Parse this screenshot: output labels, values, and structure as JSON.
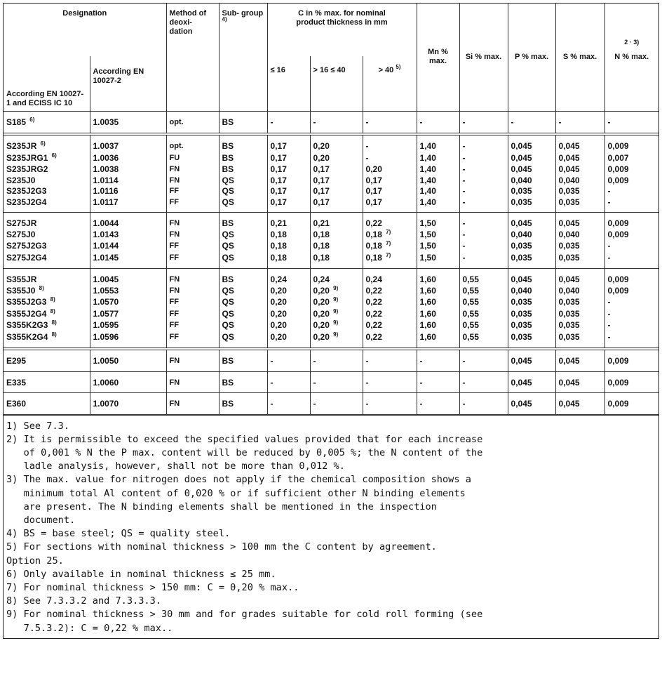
{
  "header": {
    "designation": "Designation",
    "en1": "According EN 10027-1 and ECISS IC 10",
    "en2": "According EN 10027-2",
    "method": "Method of deoxi- dation",
    "subgroup": "Sub- group",
    "subgroup_sup": "4)",
    "c_title": "C in % max. for nominal product thickness in mm",
    "c1": "≤ 16",
    "c2": "> 16 ≤ 40",
    "c3": "> 40",
    "c3_sup": "5)",
    "mn": "Mn % max.",
    "si": "Si % max.",
    "p": "P % max.",
    "s": "S % max.",
    "n": "N % max.",
    "n_sup": "2 · 3)"
  },
  "groups": [
    [
      [
        "S185|6)",
        "1.0035",
        "opt.",
        "BS",
        "-",
        "-",
        "-",
        "-",
        "-",
        "-",
        "-",
        "-"
      ]
    ],
    [
      [
        "S235JR|6)",
        "1.0037",
        "opt.",
        "BS",
        "0,17",
        "0,20",
        "-",
        "1,40",
        "-",
        "0,045",
        "0,045",
        "0,009"
      ],
      [
        "S235JRG1|6)",
        "1.0036",
        "FU",
        "BS",
        "0,17",
        "0,20",
        "-",
        "1,40",
        "-",
        "0,045",
        "0,045",
        "0,007"
      ],
      [
        "S235JRG2",
        "1.0038",
        "FN",
        "BS",
        "0,17",
        "0,17",
        "0,20",
        "1,40",
        "-",
        "0,045",
        "0,045",
        "0,009"
      ],
      [
        "S235J0",
        "1.0114",
        "FN",
        "QS",
        "0,17",
        "0,17",
        "0,17",
        "1,40",
        "-",
        "0,040",
        "0,040",
        "0,009"
      ],
      [
        "S235J2G3",
        "1.0116",
        "FF",
        "QS",
        "0,17",
        "0,17",
        "0,17",
        "1,40",
        "-",
        "0,035",
        "0,035",
        "-"
      ],
      [
        "S235J2G4",
        "1.0117",
        "FF",
        "QS",
        "0,17",
        "0,17",
        "0,17",
        "1,40",
        "-",
        "0,035",
        "0,035",
        "-"
      ]
    ],
    [
      [
        "S275JR",
        "1.0044",
        "FN",
        "BS",
        "0,21",
        "0,21",
        "0,22",
        "1,50",
        "-",
        "0,045",
        "0,045",
        "0,009"
      ],
      [
        "S275J0",
        "1.0143",
        "FN",
        "QS",
        "0,18",
        "0,18",
        "0,18|7)",
        "1,50",
        "-",
        "0,040",
        "0,040",
        "0,009"
      ],
      [
        "S275J2G3",
        "1.0144",
        "FF",
        "QS",
        "0,18",
        "0,18",
        "0,18|7)",
        "1,50",
        "-",
        "0,035",
        "0,035",
        "-"
      ],
      [
        "S275J2G4",
        "1.0145",
        "FF",
        "QS",
        "0,18",
        "0,18",
        "0,18|7)",
        "1,50",
        "-",
        "0,035",
        "0,035",
        "-"
      ]
    ],
    [
      [
        "S355JR",
        "1.0045",
        "FN",
        "BS",
        "0,24",
        "0,24",
        "0,24",
        "1,60",
        "0,55",
        "0,045",
        "0,045",
        "0,009"
      ],
      [
        "S355J0|8)",
        "1.0553",
        "FN",
        "QS",
        "0,20",
        "0,20|9)",
        "0,22",
        "1,60",
        "0,55",
        "0,040",
        "0,040",
        "0,009"
      ],
      [
        "S355J2G3|8)",
        "1.0570",
        "FF",
        "QS",
        "0,20",
        "0,20|9)",
        "0,22",
        "1,60",
        "0,55",
        "0,035",
        "0,035",
        "-"
      ],
      [
        "S355J2G4|8)",
        "1.0577",
        "FF",
        "QS",
        "0,20",
        "0,20|9)",
        "0,22",
        "1,60",
        "0,55",
        "0,035",
        "0,035",
        "-"
      ],
      [
        "S355K2G3|8)",
        "1.0595",
        "FF",
        "QS",
        "0,20",
        "0,20|9)",
        "0,22",
        "1,60",
        "0,55",
        "0,035",
        "0,035",
        "-"
      ],
      [
        "S355K2G4|8)",
        "1.0596",
        "FF",
        "QS",
        "0,20",
        "0,20|9)",
        "0,22",
        "1,60",
        "0,55",
        "0,035",
        "0,035",
        "-"
      ]
    ],
    [
      [
        "E295",
        "1.0050",
        "FN",
        "BS",
        "-",
        "-",
        "-",
        "-",
        "-",
        "0,045",
        "0,045",
        "0,009"
      ]
    ],
    [
      [
        "E335",
        "1.0060",
        "FN",
        "BS",
        "-",
        "-",
        "-",
        "-",
        "-",
        "0,045",
        "0,045",
        "0,009"
      ]
    ],
    [
      [
        "E360",
        "1.0070",
        "FN",
        "BS",
        "-",
        "-",
        "-",
        "-",
        "-",
        "0,045",
        "0,045",
        "0,009"
      ]
    ]
  ],
  "notes": [
    "1) See 7.3.",
    "2) It is permissible to exceed the specified values provided that for each increase\n   of 0,001 % N the P max. content will be reduced by 0,005 %; the N content of the\n   ladle analysis, however, shall not be more than 0,012 %.",
    "3) The max. value for nitrogen does not apply if the chemical composition shows a\n   minimum total Al content of 0,020 % or if sufficient other N binding elements\n   are present. The N binding elements shall be mentioned in the inspection\n   document.",
    "4) BS = base steel; QS = quality steel.",
    "5) For sections with nominal thickness > 100 mm the C content by agreement.\nOption 25.",
    "6) Only available in nominal thickness ≤ 25 mm.",
    "7) For nominal thickness > 150 mm: C = 0,20 % max..",
    "8) See 7.3.3.2 and 7.3.3.3.",
    "9) For nominal thickness > 30 mm and for grades suitable for cold roll forming (see\n   7.5.3.2): C = 0,22 % max.."
  ]
}
